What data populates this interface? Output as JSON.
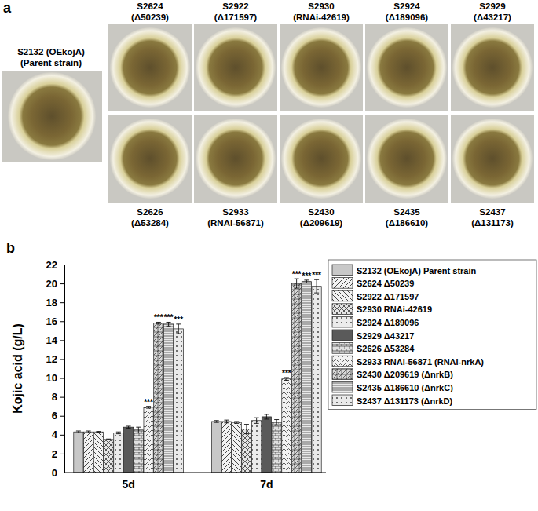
{
  "panel_a": {
    "label": "a",
    "parent": {
      "strain": "S2132",
      "genotype": "(OEkojA)",
      "note": "(Parent strain)"
    },
    "top_row": [
      {
        "strain": "S2624",
        "genotype": "(Δ50239)"
      },
      {
        "strain": "S2922",
        "genotype": "(Δ171597)"
      },
      {
        "strain": "S2930",
        "genotype": "(RNAi-42619)"
      },
      {
        "strain": "S2924",
        "genotype": "(Δ189096)"
      },
      {
        "strain": "S2929",
        "genotype": "(Δ43217)"
      }
    ],
    "bottom_row": [
      {
        "strain": "S2626",
        "genotype": "(Δ53284)"
      },
      {
        "strain": "S2933",
        "genotype": "(RNAi-56871)"
      },
      {
        "strain": "S2430",
        "genotype": "(Δ209619)"
      },
      {
        "strain": "S2435",
        "genotype": "(Δ186610)"
      },
      {
        "strain": "S2437",
        "genotype": "(Δ131173)"
      }
    ]
  },
  "chart_data": {
    "type": "bar",
    "panel_label": "b",
    "y_label": "Kojic acid (g/L)",
    "categories": [
      "5d",
      "7d"
    ],
    "ylim": [
      0,
      22
    ],
    "yticks": [
      0,
      2,
      4,
      6,
      8,
      10,
      12,
      14,
      16,
      18,
      20,
      22
    ],
    "grid": false,
    "legend": "right",
    "series": [
      {
        "name": "S2132 (OEkojA) Parent strain",
        "color": "#c8c8c8",
        "values": [
          4.3,
          5.4
        ],
        "errors": [
          0.1,
          0.1
        ]
      },
      {
        "name": "S2624 Δ50239",
        "color": "#f2f2f2",
        "values": [
          4.3,
          5.4
        ],
        "errors": [
          0.1,
          0.15
        ]
      },
      {
        "name": "S2922 Δ171597",
        "color": "#f2f2f2",
        "values": [
          4.3,
          5.3
        ],
        "errors": [
          0.05,
          0.1
        ]
      },
      {
        "name": "S2930 RNAi-42619",
        "color": "#e6e6e6",
        "values": [
          3.5,
          4.6
        ],
        "errors": [
          0.05,
          0.5
        ]
      },
      {
        "name": "S2924 Δ189096",
        "color": "#ececec",
        "values": [
          4.2,
          5.5
        ],
        "errors": [
          0.1,
          0.3
        ]
      },
      {
        "name": "S2929 Δ43217",
        "color": "#5a5a5a",
        "values": [
          4.8,
          5.9
        ],
        "errors": [
          0.1,
          0.25
        ]
      },
      {
        "name": "S2626 Δ53284",
        "color": "#e0e0e0",
        "values": [
          4.5,
          5.3
        ],
        "errors": [
          0.3,
          0.3
        ]
      },
      {
        "name": "S2933 RNAi-56871 (RNAi-nrkA)",
        "color": "#f2f2f2",
        "values": [
          6.9,
          9.9
        ],
        "errors": [
          0.1,
          0.15
        ],
        "significance": [
          "***",
          "***"
        ]
      },
      {
        "name": "S2430 Δ209619 (ΔnrkB)",
        "color": "#d8d8d8",
        "values": [
          15.8,
          20.0
        ],
        "errors": [
          0.1,
          0.5
        ],
        "significance": [
          "***",
          "***"
        ]
      },
      {
        "name": "S2435 Δ186610 (ΔnrkC)",
        "color": "#e8e8e8",
        "values": [
          15.7,
          20.2
        ],
        "errors": [
          0.2,
          0.15
        ],
        "significance": [
          "***",
          "***"
        ]
      },
      {
        "name": "S2437 Δ131173 (ΔnrkD)",
        "color": "#eaeaea",
        "values": [
          15.2,
          19.7
        ],
        "errors": [
          0.5,
          0.7
        ],
        "significance": [
          "***",
          "***"
        ]
      }
    ]
  }
}
